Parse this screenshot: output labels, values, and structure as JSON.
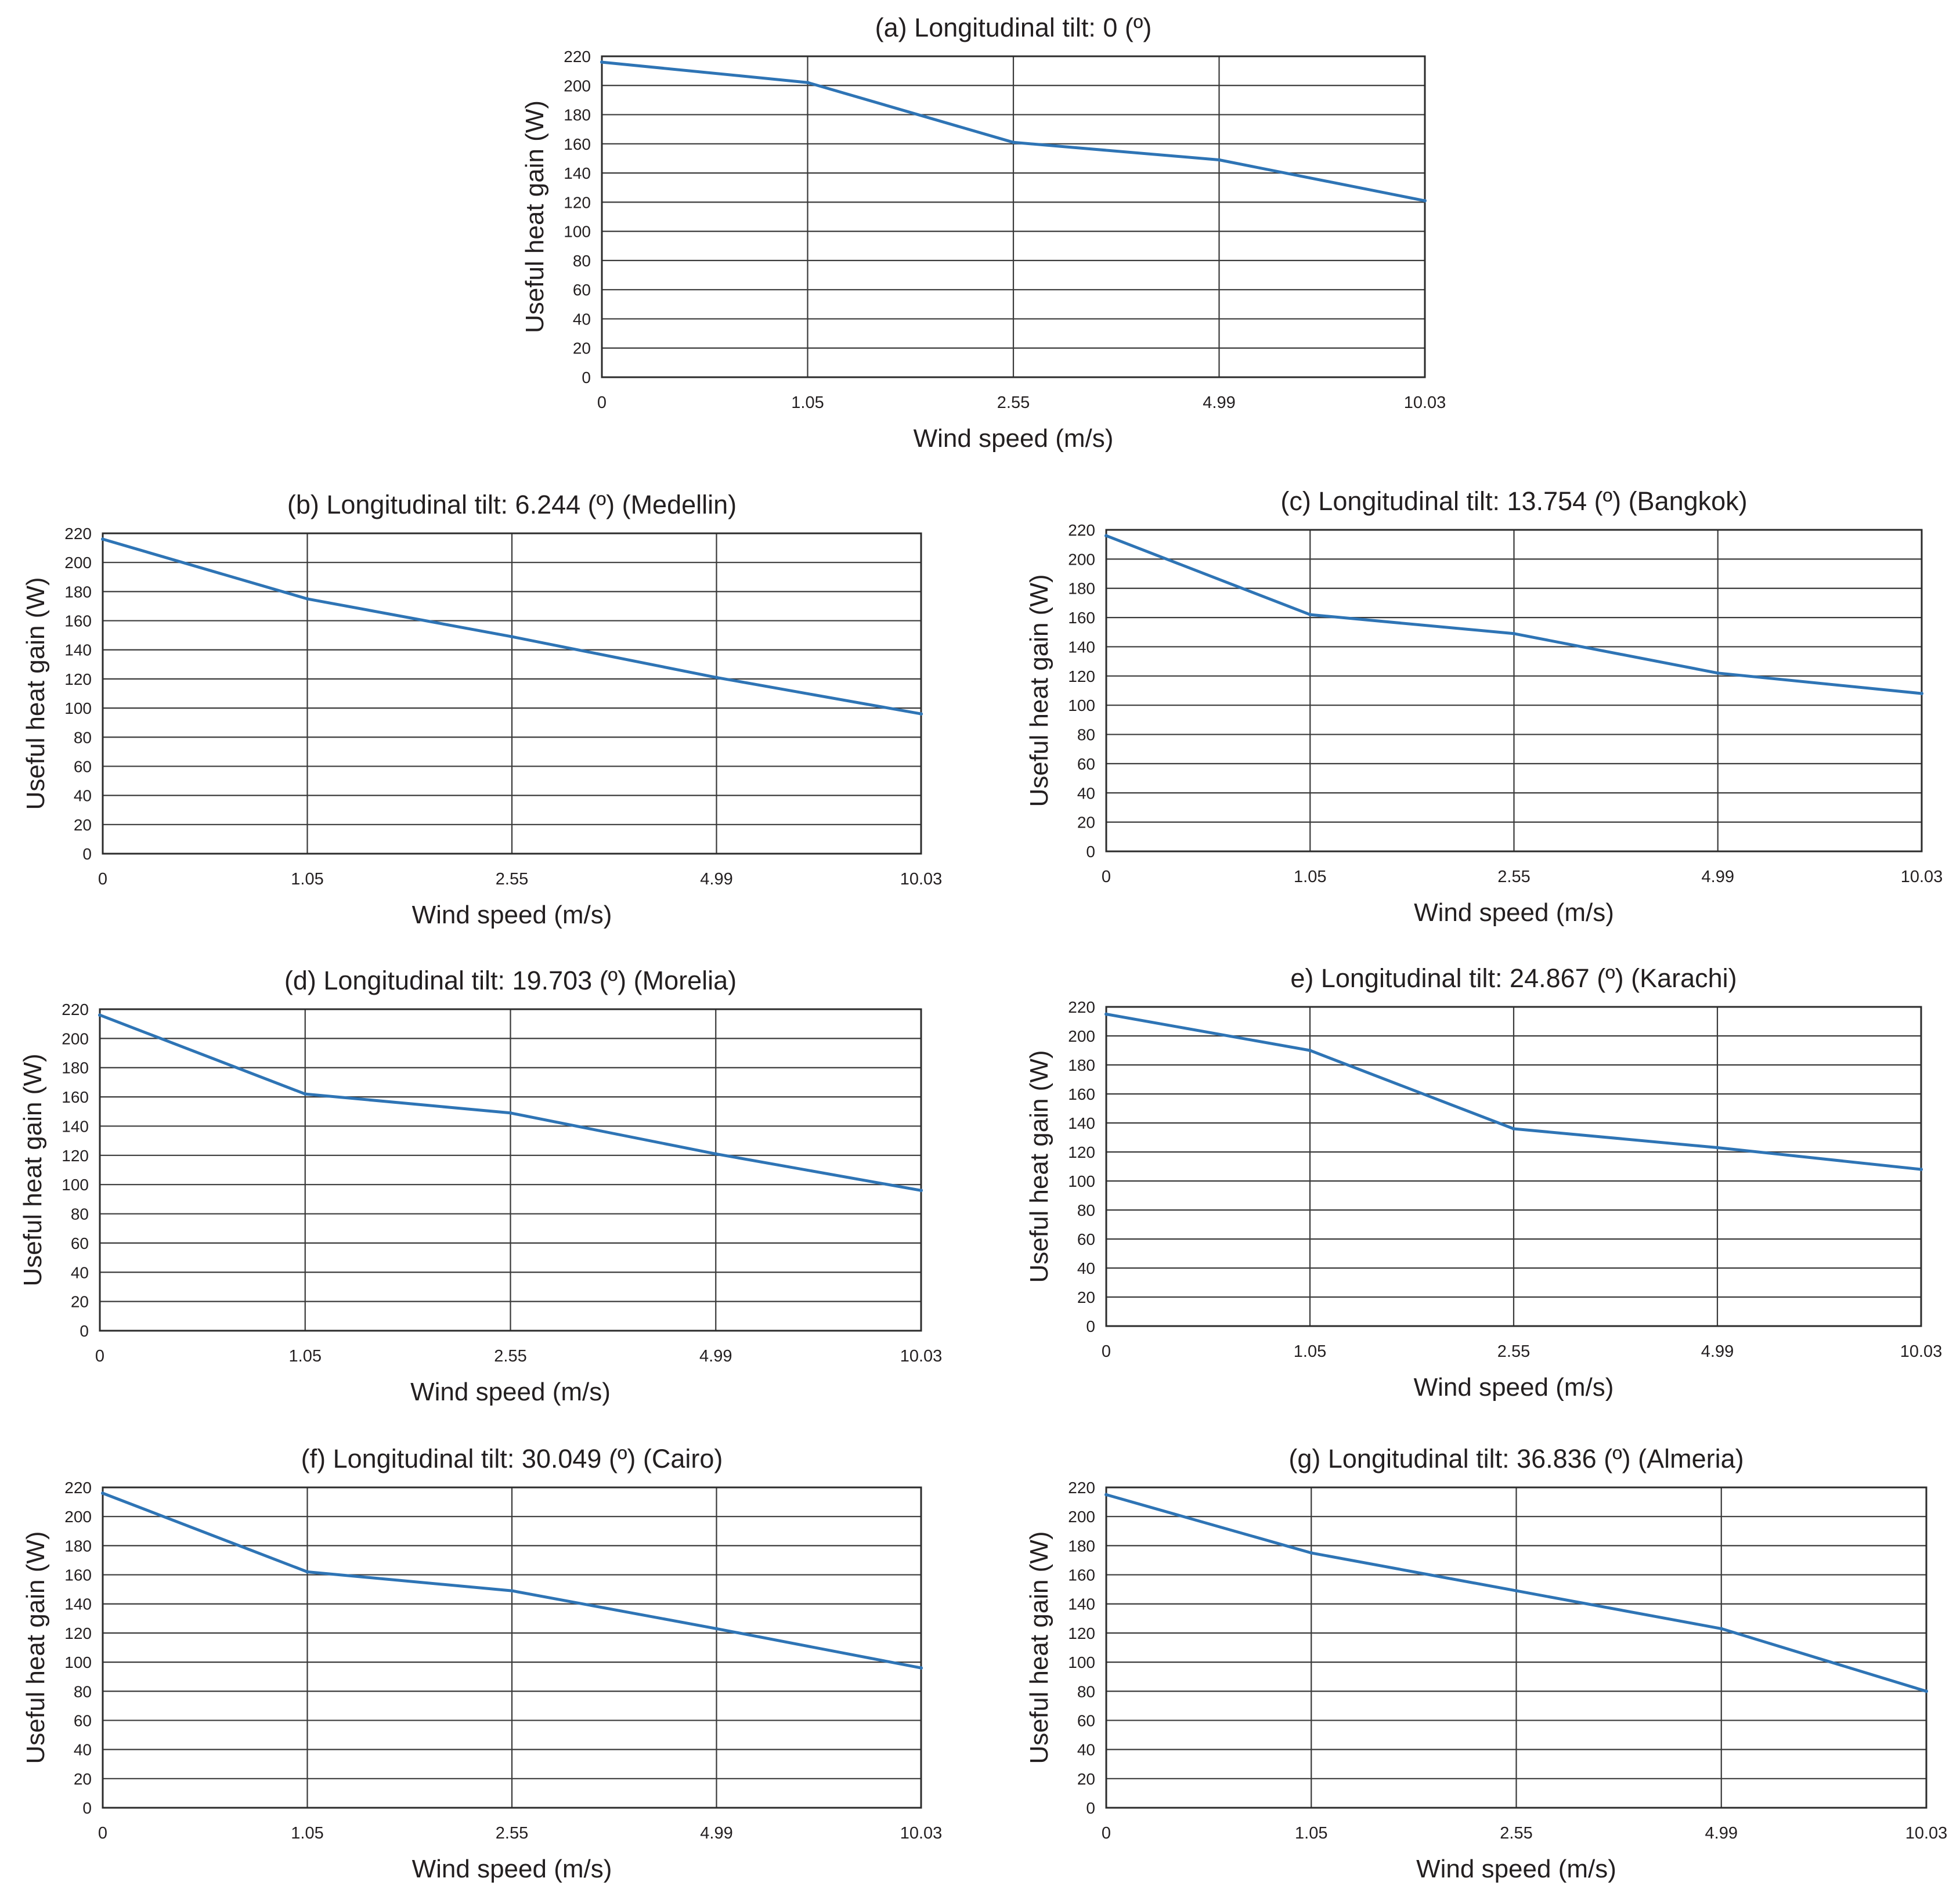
{
  "figure": {
    "background": "#ffffff",
    "grid_color": "#3a3a3a",
    "line_color": "#2e74b5"
  },
  "chart_data": [
    {
      "id": "a",
      "type": "line",
      "title": "(a) Longitudinal tilt: 0 (º)",
      "xlabel": "Wind speed (m/s)",
      "ylabel": "Useful heat gain (W)",
      "categories": [
        "0",
        "1.05",
        "2.55",
        "4.99",
        "10.03"
      ],
      "values": [
        216,
        202,
        161,
        149,
        121
      ],
      "ylim": [
        0,
        220
      ],
      "yticks": [
        0,
        20,
        40,
        60,
        80,
        100,
        120,
        140,
        160,
        180,
        200,
        220
      ],
      "grid": true
    },
    {
      "id": "b",
      "type": "line",
      "title": "(b) Longitudinal tilt: 6.244 (º) (Medellin)",
      "xlabel": "Wind speed (m/s)",
      "ylabel": "Useful heat gain (W)",
      "categories": [
        "0",
        "1.05",
        "2.55",
        "4.99",
        "10.03"
      ],
      "values": [
        216,
        175,
        149,
        121,
        96
      ],
      "ylim": [
        0,
        220
      ],
      "yticks": [
        0,
        20,
        40,
        60,
        80,
        100,
        120,
        140,
        160,
        180,
        200,
        220
      ],
      "grid": true
    },
    {
      "id": "c",
      "type": "line",
      "title": "(c) Longitudinal tilt: 13.754 (º) (Bangkok)",
      "xlabel": "Wind speed (m/s)",
      "ylabel": "Useful heat gain (W)",
      "categories": [
        "0",
        "1.05",
        "2.55",
        "4.99",
        "10.03"
      ],
      "values": [
        216,
        162,
        149,
        122,
        108
      ],
      "ylim": [
        0,
        220
      ],
      "yticks": [
        0,
        20,
        40,
        60,
        80,
        100,
        120,
        140,
        160,
        180,
        200,
        220
      ],
      "grid": true
    },
    {
      "id": "d",
      "type": "line",
      "title": "(d) Longitudinal tilt: 19.703 (º) (Morelia)",
      "xlabel": "Wind speed (m/s)",
      "ylabel": "Useful heat gain (W)",
      "categories": [
        "0",
        "1.05",
        "2.55",
        "4.99",
        "10.03"
      ],
      "values": [
        216,
        162,
        149,
        121,
        96
      ],
      "ylim": [
        0,
        220
      ],
      "yticks": [
        0,
        20,
        40,
        60,
        80,
        100,
        120,
        140,
        160,
        180,
        200,
        220
      ],
      "grid": true
    },
    {
      "id": "e",
      "type": "line",
      "title": "e) Longitudinal tilt: 24.867 (º) (Karachi)",
      "xlabel": "Wind speed (m/s)",
      "ylabel": "Useful heat gain (W)",
      "categories": [
        "0",
        "1.05",
        "2.55",
        "4.99",
        "10.03"
      ],
      "values": [
        215,
        190,
        136,
        123,
        108
      ],
      "ylim": [
        0,
        220
      ],
      "yticks": [
        0,
        20,
        40,
        60,
        80,
        100,
        120,
        140,
        160,
        180,
        200,
        220
      ],
      "grid": true
    },
    {
      "id": "f",
      "type": "line",
      "title": "(f) Longitudinal tilt: 30.049 (º) (Cairo)",
      "xlabel": "Wind speed (m/s)",
      "ylabel": "Useful heat gain (W)",
      "categories": [
        "0",
        "1.05",
        "2.55",
        "4.99",
        "10.03"
      ],
      "values": [
        216,
        162,
        149,
        123,
        96
      ],
      "ylim": [
        0,
        220
      ],
      "yticks": [
        0,
        20,
        40,
        60,
        80,
        100,
        120,
        140,
        160,
        180,
        200,
        220
      ],
      "grid": true
    },
    {
      "id": "g",
      "type": "line",
      "title": "(g) Longitudinal tilt: 36.836 (º) (Almeria)",
      "xlabel": "Wind speed (m/s)",
      "ylabel": "Useful heat gain (W)",
      "categories": [
        "0",
        "1.05",
        "2.55",
        "4.99",
        "10.03"
      ],
      "values": [
        215,
        175,
        149,
        123,
        80
      ],
      "ylim": [
        0,
        220
      ],
      "yticks": [
        0,
        20,
        40,
        60,
        80,
        100,
        120,
        140,
        160,
        180,
        200,
        220
      ],
      "grid": true
    }
  ]
}
